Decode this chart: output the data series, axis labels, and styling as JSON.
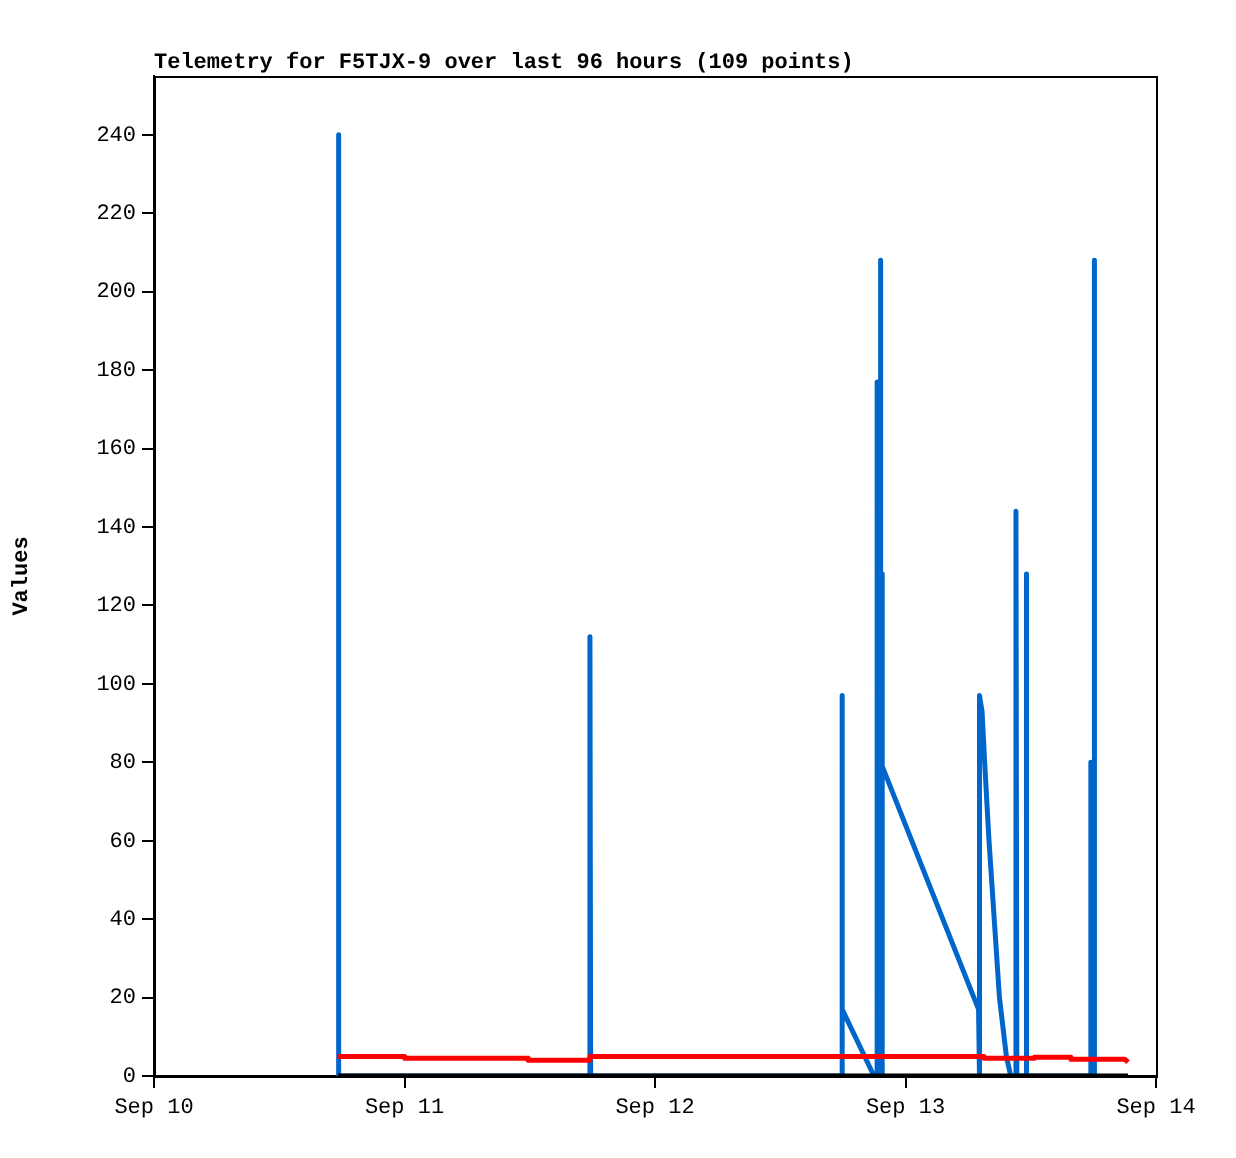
{
  "chart_data": {
    "type": "line",
    "title": "Telemetry for F5TJX-9 over last 96 hours (109 points)",
    "ylabel": "Values",
    "xlim": [
      "--09-10",
      "--09-14"
    ],
    "xticks": [
      {
        "value": "--09-10",
        "label": "Sep 10"
      },
      {
        "value": "--09-11",
        "label": "Sep 11"
      },
      {
        "value": "--09-12",
        "label": "Sep 12"
      },
      {
        "value": "--09-13",
        "label": "Sep 13"
      },
      {
        "value": "--09-14",
        "label": "Sep 14"
      }
    ],
    "ylim": [
      0,
      255
    ],
    "yticks": [
      0,
      20,
      40,
      60,
      80,
      100,
      120,
      140,
      160,
      180,
      200,
      220,
      240
    ],
    "grid": false,
    "legend": false,
    "marker": "none",
    "line_style": "solid",
    "series": [
      {
        "color": "#000000",
        "x": [
          "--09-10T17:38",
          "--09-11T12:00",
          "--09-12T12:00",
          "--09-13T12:00",
          "--09-13T21:19"
        ],
        "values": [
          0,
          0,
          0,
          0,
          0
        ]
      },
      {
        "color": "#ff0000",
        "x": [
          "--09-10T17:38",
          "--09-11T00:00",
          "--09-11T00:01",
          "--09-11T11:50",
          "--09-11T11:51",
          "--09-11T17:46",
          "--09-11T17:47",
          "--09-13T07:30",
          "--09-13T07:31",
          "--09-13T12:20",
          "--09-13T12:21",
          "--09-13T15:50",
          "--09-13T15:51",
          "--09-13T21:00",
          "--09-13T21:19"
        ],
        "values": [
          5,
          5,
          4.5,
          4.5,
          4,
          4,
          5,
          5,
          4.5,
          4.5,
          4.8,
          4.8,
          4.3,
          4.3,
          3.5
        ]
      },
      {
        "color": "#0066cc",
        "x": [
          "--09-10T17:38",
          "--09-10T17:38",
          "--09-10T17:45",
          "--09-11T17:46",
          "--09-11T17:46",
          "--09-11T17:50",
          "--09-12T17:55",
          "--09-12T17:55",
          "--09-12T17:57",
          "--09-12T20:59",
          "--09-12T21:14",
          "--09-12T21:14",
          "--09-12T21:20",
          "--09-12T21:34",
          "--09-12T21:34",
          "--09-12T21:40",
          "--09-12T21:45",
          "--09-12T21:45",
          "--09-12T21:47",
          "--09-13T07:00",
          "--09-13T07:00",
          "--09-13T07:08",
          "--09-13T07:08",
          "--09-13T07:20",
          "--09-13T07:35",
          "--09-13T08:00",
          "--09-13T08:30",
          "--09-13T09:00",
          "--09-13T09:40",
          "--09-13T10:05",
          "--09-13T10:35",
          "--09-13T10:35",
          "--09-13T10:40",
          "--09-13T11:33",
          "--09-13T11:33",
          "--09-13T11:38",
          "--09-13T17:41",
          "--09-13T17:41",
          "--09-13T17:50",
          "--09-13T18:04",
          "--09-13T18:04",
          "--09-13T18:08"
        ],
        "values": [
          0,
          240,
          0,
          0,
          112,
          0,
          0,
          97,
          17,
          0,
          0,
          177,
          0,
          0,
          208,
          0,
          0,
          128,
          79,
          17,
          0,
          0,
          97,
          93,
          80,
          60,
          40,
          20,
          5,
          0,
          0,
          144,
          0,
          0,
          128,
          0,
          0,
          80,
          0,
          0,
          208,
          0
        ]
      }
    ]
  }
}
